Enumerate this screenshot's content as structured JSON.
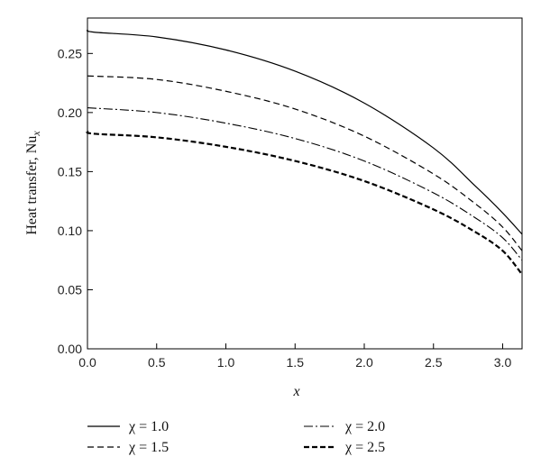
{
  "chart_data": {
    "type": "line",
    "xlabel": "x",
    "ylabel_main": "Heat transfer, Nu",
    "ylabel_sub": "x",
    "xlim": [
      0,
      3.14
    ],
    "ylim": [
      0,
      0.28
    ],
    "xticks": [
      "0.0",
      "0.5",
      "1.0",
      "1.5",
      "2.0",
      "2.5",
      "3.0"
    ],
    "yticks": [
      "0.00",
      "0.05",
      "0.10",
      "0.15",
      "0.20",
      "0.25"
    ],
    "grid": false,
    "legend_position": "bottom",
    "series": [
      {
        "name": "χ = 1.0",
        "style": "solid",
        "x": [
          0.0,
          0.05,
          0.5,
          1.0,
          1.5,
          2.0,
          2.5,
          2.8,
          3.0,
          3.14
        ],
        "y": [
          0.27,
          0.268,
          0.264,
          0.253,
          0.235,
          0.208,
          0.17,
          0.138,
          0.115,
          0.097
        ]
      },
      {
        "name": "χ = 1.5",
        "style": "dashed",
        "x": [
          0.0,
          0.5,
          1.0,
          1.5,
          2.0,
          2.5,
          2.8,
          3.0,
          3.14
        ],
        "y": [
          0.231,
          0.228,
          0.218,
          0.203,
          0.18,
          0.148,
          0.123,
          0.103,
          0.083
        ]
      },
      {
        "name": "χ = 2.0",
        "style": "dashdot",
        "x": [
          0.0,
          0.5,
          1.0,
          1.5,
          2.0,
          2.5,
          2.8,
          3.0,
          3.14
        ],
        "y": [
          0.204,
          0.2,
          0.191,
          0.178,
          0.159,
          0.132,
          0.111,
          0.094,
          0.075
        ]
      },
      {
        "name": "χ = 2.5",
        "style": "bold-dashed",
        "x": [
          0.0,
          0.05,
          0.5,
          1.0,
          1.5,
          2.0,
          2.5,
          2.8,
          3.0,
          3.14
        ],
        "y": [
          0.184,
          0.182,
          0.179,
          0.171,
          0.159,
          0.142,
          0.118,
          0.099,
          0.083,
          0.063
        ]
      }
    ]
  }
}
